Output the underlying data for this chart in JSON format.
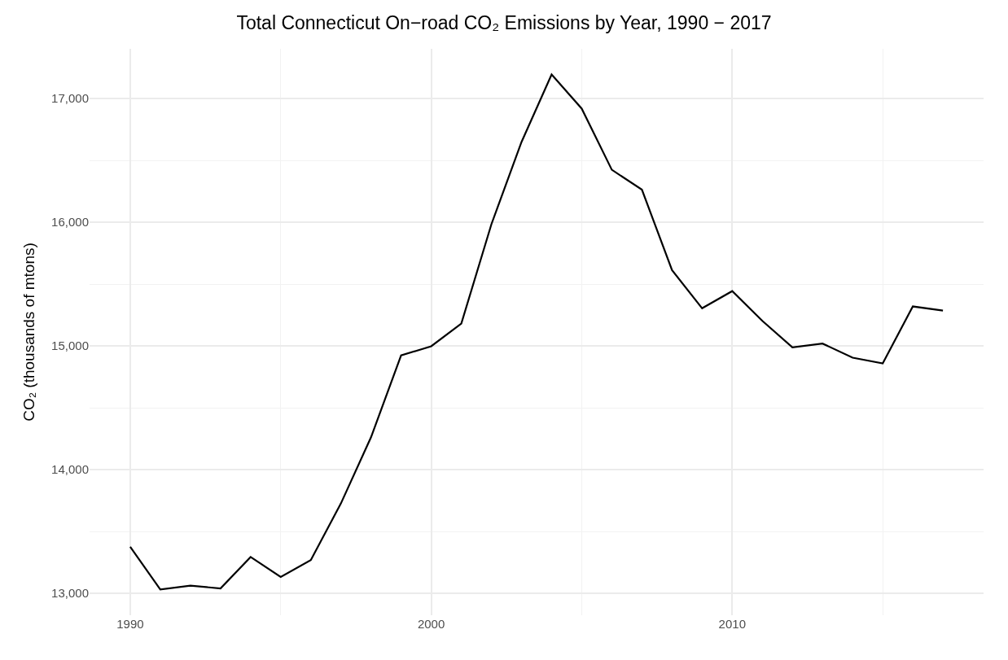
{
  "chart_data": {
    "type": "line",
    "title": "Total Connecticut On−road CO₂ Emissions by Year, 1990 − 2017",
    "ylabel": "CO₂ (thousands of mtons)",
    "x": [
      1990,
      1991,
      1992,
      1993,
      1994,
      1995,
      1996,
      1997,
      1998,
      1999,
      2000,
      2001,
      2002,
      2003,
      2004,
      2005,
      2006,
      2007,
      2008,
      2009,
      2010,
      2011,
      2012,
      2013,
      2014,
      2015,
      2016,
      2017
    ],
    "series": [
      {
        "color": "#000000",
        "values": [
          13377,
          13031,
          13062,
          13040,
          13294,
          13133,
          13269,
          13727,
          14262,
          14924,
          14998,
          15181,
          15985,
          16650,
          17195,
          16920,
          16425,
          16264,
          15614,
          15305,
          15444,
          15203,
          14989,
          15020,
          14906,
          14859,
          15320,
          15286
        ]
      }
    ],
    "xlim": [
      1988.65,
      2018.35
    ],
    "ylim": [
      12823,
      17403
    ],
    "xticks": [
      1990,
      2000,
      2010
    ],
    "yticks": [
      {
        "value": 13000,
        "label": "13,000"
      },
      {
        "value": 14000,
        "label": "14,000"
      },
      {
        "value": 15000,
        "label": "15,000"
      },
      {
        "value": 16000,
        "label": "16,000"
      },
      {
        "value": 17000,
        "label": "17,000"
      }
    ],
    "grid": true,
    "marker": "none",
    "line_style": "solid"
  }
}
